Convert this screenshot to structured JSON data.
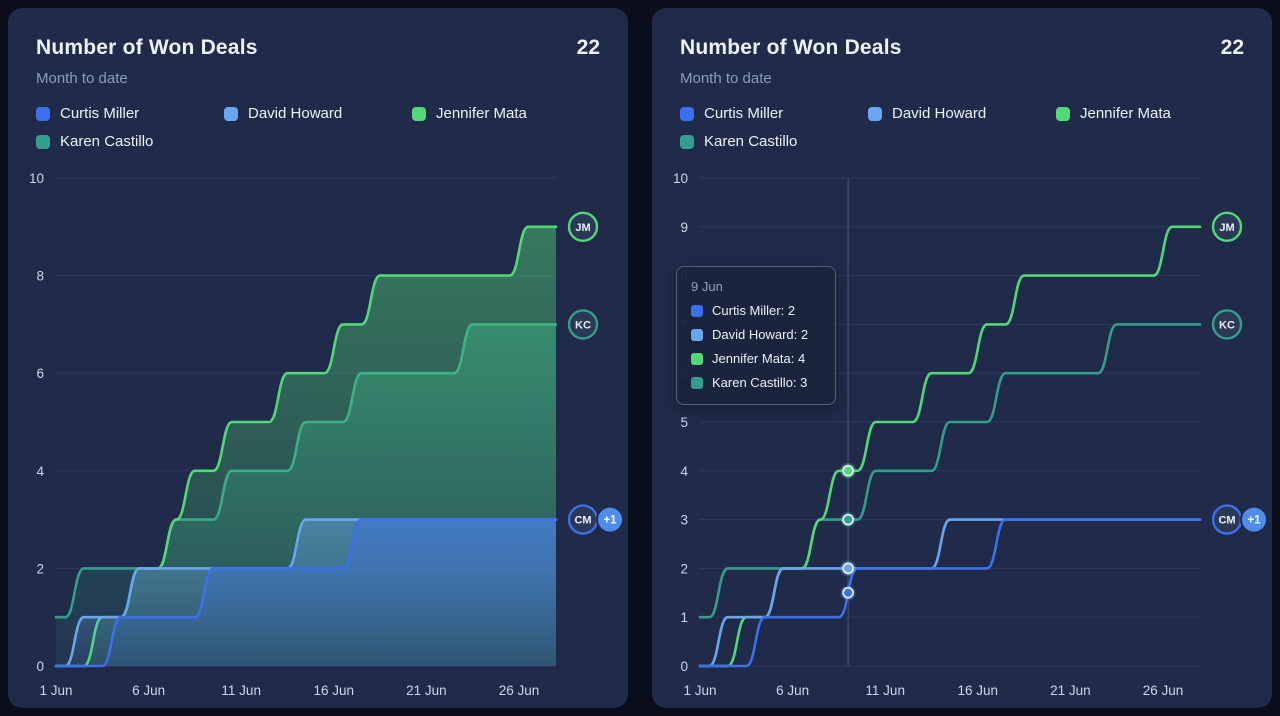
{
  "accent_colors": {
    "curtis": "#3b70ee",
    "david": "#69a6f1",
    "jennifer": "#53d877",
    "karen": "#339e8c",
    "card_bg": "#1f2b49",
    "page_bg": "#0a0e1a",
    "badge_bg": "#4f8cf0"
  },
  "left_card": {
    "title": "Number of Won Deals",
    "value": "22",
    "subtitle": "Month to date",
    "legend": [
      {
        "label": "Curtis Miller",
        "color": "#3b70ee"
      },
      {
        "label": "David Howard",
        "color": "#69a6f1"
      },
      {
        "label": "Jennifer Mata",
        "color": "#53d877"
      },
      {
        "label": "Karen Castillo",
        "color": "#339e8c"
      }
    ],
    "plus_badge": "+1"
  },
  "right_card": {
    "title": "Number of Won Deals",
    "value": "22",
    "subtitle": "Month to date",
    "legend": [
      {
        "label": "Curtis Miller",
        "color": "#3b70ee"
      },
      {
        "label": "David Howard",
        "color": "#69a6f1"
      },
      {
        "label": "Jennifer Mata",
        "color": "#53d877"
      },
      {
        "label": "Karen Castillo",
        "color": "#339e8c"
      }
    ],
    "plus_badge": "+1",
    "tooltip": {
      "title": "9 Jun",
      "rows": [
        {
          "text": "Curtis Miller: 2",
          "color": "#3b70ee"
        },
        {
          "text": "David Howard: 2",
          "color": "#69a6f1"
        },
        {
          "text": "Jennifer Mata: 4",
          "color": "#53d877"
        },
        {
          "text": "Karen Castillo: 3",
          "color": "#339e8c"
        }
      ]
    }
  },
  "chart_data": [
    {
      "type": "area",
      "title": "Number of Won Deals",
      "subtitle": "Month to date",
      "total": 22,
      "x_tick_labels": [
        "1 Jun",
        "6 Jun",
        "11 Jun",
        "16 Jun",
        "21 Jun",
        "26 Jun"
      ],
      "x_tick_days": [
        1,
        6,
        11,
        16,
        21,
        26
      ],
      "x_domain_days": [
        1,
        28
      ],
      "ylim": [
        0,
        10
      ],
      "y_ticks": [
        0,
        2,
        4,
        6,
        8,
        10
      ],
      "grid": true,
      "legend_position": "top",
      "series": [
        {
          "name": "Curtis Miller",
          "color": "#3b70ee",
          "values": [
            0,
            0,
            0,
            1,
            1,
            1,
            1,
            1,
            2,
            2,
            2,
            2,
            2,
            2,
            2,
            2,
            3,
            3,
            3,
            3,
            3,
            3,
            3,
            3,
            3,
            3,
            3,
            3
          ]
        },
        {
          "name": "David Howard",
          "color": "#69a6f1",
          "values": [
            0,
            1,
            1,
            1,
            2,
            2,
            2,
            2,
            2,
            2,
            2,
            2,
            2,
            3,
            3,
            3,
            3,
            3,
            3,
            3,
            3,
            3,
            3,
            3,
            3,
            3,
            3,
            3
          ]
        },
        {
          "name": "Jennifer Mata",
          "color": "#53d877",
          "values": [
            0,
            0,
            1,
            1,
            2,
            2,
            3,
            4,
            4,
            5,
            5,
            5,
            6,
            6,
            6,
            7,
            7,
            8,
            8,
            8,
            8,
            8,
            8,
            8,
            8,
            9,
            9,
            9
          ]
        },
        {
          "name": "Karen Castillo",
          "color": "#339e8c",
          "values": [
            1,
            2,
            2,
            2,
            2,
            2,
            3,
            3,
            3,
            4,
            4,
            4,
            4,
            5,
            5,
            5,
            6,
            6,
            6,
            6,
            6,
            6,
            7,
            7,
            7,
            7,
            7,
            7
          ]
        }
      ],
      "end_labels": [
        {
          "series": "Jennifer Mata"
        },
        {
          "series": "Karen Castillo"
        },
        {
          "series": "Curtis Miller",
          "badge": "+1"
        }
      ]
    },
    {
      "type": "line",
      "title": "Number of Won Deals",
      "subtitle": "Month to date",
      "total": 22,
      "x_tick_labels": [
        "1 Jun",
        "6 Jun",
        "11 Jun",
        "16 Jun",
        "21 Jun",
        "26 Jun"
      ],
      "x_tick_days": [
        1,
        6,
        11,
        16,
        21,
        26
      ],
      "x_domain_days": [
        1,
        28
      ],
      "ylim": [
        0,
        10
      ],
      "y_ticks": [
        0,
        1,
        2,
        3,
        4,
        5,
        6,
        7,
        8,
        9,
        10
      ],
      "grid": true,
      "legend_position": "top",
      "crosshair_day": 9,
      "tooltip_day": 9,
      "series": [
        {
          "name": "Curtis Miller",
          "color": "#3b70ee",
          "values": [
            0,
            0,
            0,
            1,
            1,
            1,
            1,
            1,
            2,
            2,
            2,
            2,
            2,
            2,
            2,
            2,
            3,
            3,
            3,
            3,
            3,
            3,
            3,
            3,
            3,
            3,
            3,
            3
          ]
        },
        {
          "name": "David Howard",
          "color": "#69a6f1",
          "values": [
            0,
            1,
            1,
            1,
            2,
            2,
            2,
            2,
            2,
            2,
            2,
            2,
            2,
            3,
            3,
            3,
            3,
            3,
            3,
            3,
            3,
            3,
            3,
            3,
            3,
            3,
            3,
            3
          ]
        },
        {
          "name": "Jennifer Mata",
          "color": "#53d877",
          "values": [
            0,
            0,
            1,
            1,
            2,
            2,
            3,
            4,
            4,
            5,
            5,
            5,
            6,
            6,
            6,
            7,
            7,
            8,
            8,
            8,
            8,
            8,
            8,
            8,
            8,
            9,
            9,
            9
          ]
        },
        {
          "name": "Karen Castillo",
          "color": "#339e8c",
          "values": [
            1,
            2,
            2,
            2,
            2,
            2,
            3,
            3,
            3,
            4,
            4,
            4,
            4,
            5,
            5,
            5,
            6,
            6,
            6,
            6,
            6,
            6,
            7,
            7,
            7,
            7,
            7,
            7
          ]
        }
      ],
      "end_labels": [
        {
          "series": "Jennifer Mata"
        },
        {
          "series": "Karen Castillo"
        },
        {
          "series": "Curtis Miller",
          "badge": "+1"
        }
      ]
    }
  ]
}
